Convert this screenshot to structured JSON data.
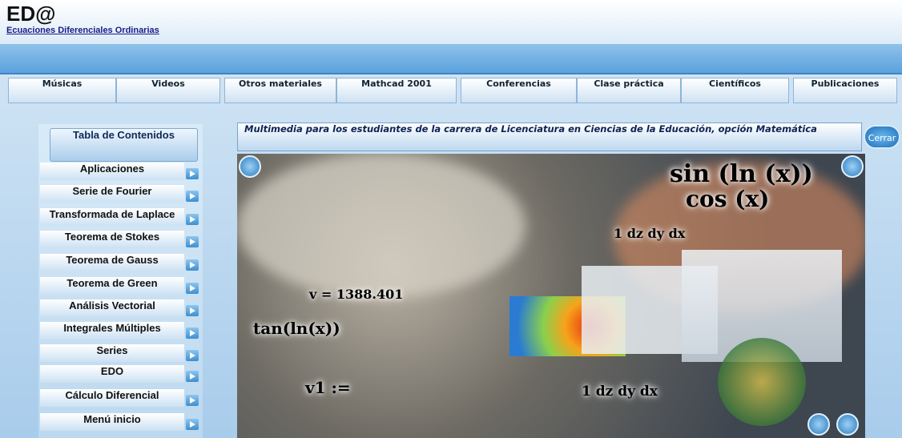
{
  "header": {
    "title": "ED@",
    "subtitle": "Ecuaciones Diferenciales Ordinarias"
  },
  "nav": [
    "Músicas",
    "Videos",
    "Otros materiales",
    "Mathcad 2001",
    "Conferencias",
    "Clase práctica",
    "Científicos",
    "Publicaciones"
  ],
  "sidebar": {
    "title": "Tabla de Contenidos",
    "items": [
      "Aplicaciones",
      "Serie de Fourier",
      "Transformada de Laplace",
      "Teorema de Stokes",
      "Teorema de Gauss",
      "Teorema de Green",
      "Análisis Vectorial",
      "Integrales Múltiples",
      "Series",
      "EDO",
      "Cálculo Diferencial",
      "Menú inicio"
    ]
  },
  "banner": "Multimedia para los estudiantes de la carrera  de Licenciatura en Ciencias de la Educación,  opción Matemática",
  "close_button": "Cerrar",
  "collage": {
    "texts": [
      "sin (ln (x))",
      "cos (x)",
      "v = 1388.401",
      "1 dz dy dx",
      "tan(ln(x))",
      "v1 :=",
      "1 dz dy dx"
    ]
  }
}
